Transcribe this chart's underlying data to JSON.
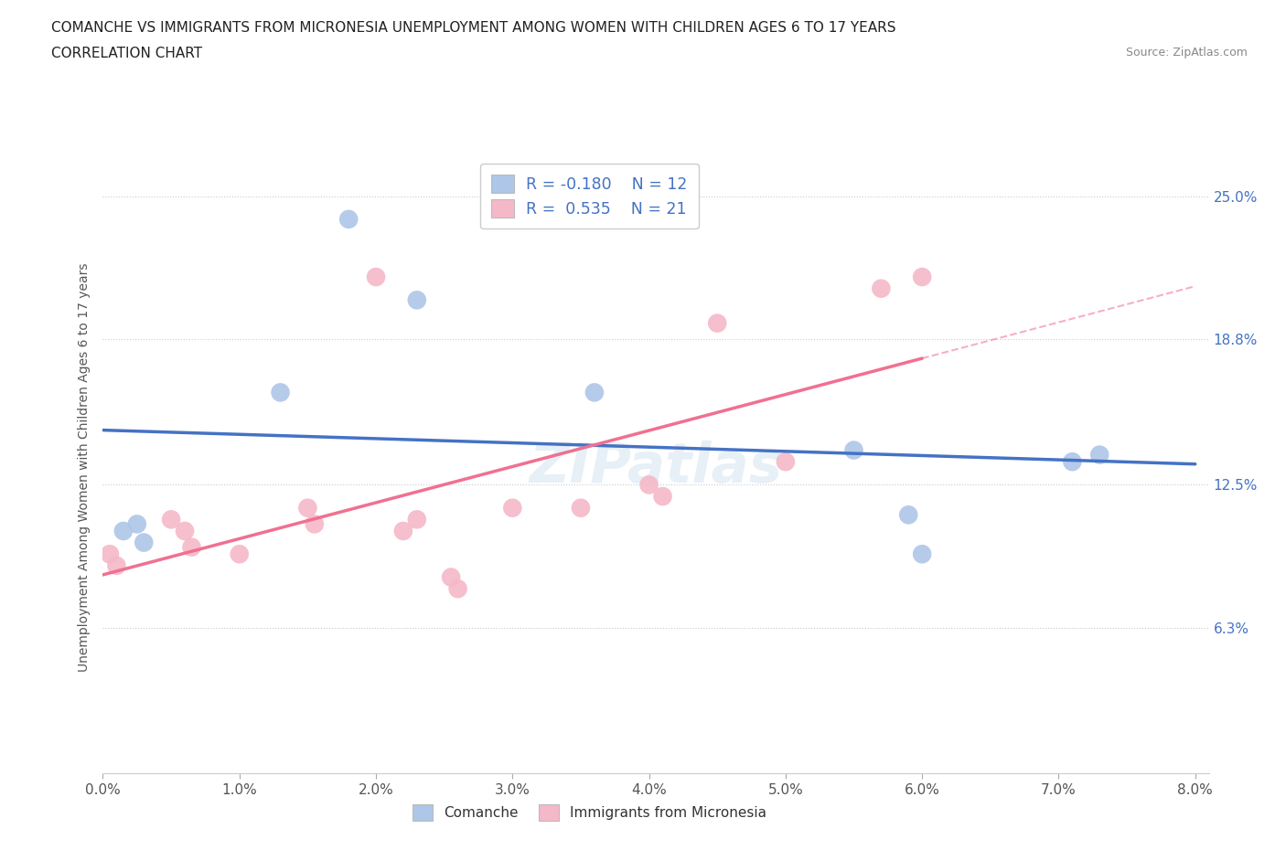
{
  "title_line1": "COMANCHE VS IMMIGRANTS FROM MICRONESIA UNEMPLOYMENT AMONG WOMEN WITH CHILDREN AGES 6 TO 17 YEARS",
  "title_line2": "CORRELATION CHART",
  "source_text": "Source: ZipAtlas.com",
  "ylabel": "Unemployment Among Women with Children Ages 6 to 17 years",
  "ytick_labels": [
    "6.3%",
    "12.5%",
    "18.8%",
    "25.0%"
  ],
  "ytick_values": [
    6.3,
    12.5,
    18.8,
    25.0
  ],
  "xtick_values": [
    0.0,
    1.0,
    2.0,
    3.0,
    4.0,
    5.0,
    6.0,
    7.0,
    8.0
  ],
  "xmin": 0.0,
  "xmax": 8.0,
  "ymin": 0.0,
  "ymax": 26.5,
  "comanche_x": [
    1.8,
    2.3,
    1.3,
    3.6,
    0.15,
    0.25,
    0.3,
    5.5,
    7.1,
    6.0,
    7.3,
    5.9
  ],
  "comanche_y": [
    24.0,
    20.5,
    16.5,
    16.5,
    10.5,
    10.8,
    10.0,
    14.0,
    13.5,
    9.5,
    13.8,
    11.2
  ],
  "micronesia_x": [
    0.05,
    0.1,
    0.5,
    0.6,
    0.65,
    1.0,
    1.5,
    1.55,
    2.0,
    2.2,
    2.3,
    2.55,
    2.6,
    3.0,
    3.5,
    4.0,
    4.1,
    4.5,
    5.0,
    5.7,
    6.0
  ],
  "micronesia_y": [
    9.5,
    9.0,
    11.0,
    10.5,
    9.8,
    9.5,
    11.5,
    10.8,
    21.5,
    10.5,
    11.0,
    8.5,
    8.0,
    11.5,
    11.5,
    12.5,
    12.0,
    19.5,
    13.5,
    21.0,
    21.5
  ],
  "comanche_color": "#aec6e8",
  "micronesia_color": "#f5b8c8",
  "comanche_line_color": "#4472c4",
  "micronesia_line_color": "#f07090",
  "comanche_R": "-0.180",
  "comanche_N": "12",
  "micronesia_R": "0.535",
  "micronesia_N": "21",
  "legend_label_comanche": "Comanche",
  "legend_label_micronesia": "Immigrants from Micronesia",
  "watermark": "ZIPatlas",
  "background_color": "#ffffff",
  "grid_color": "#cccccc"
}
